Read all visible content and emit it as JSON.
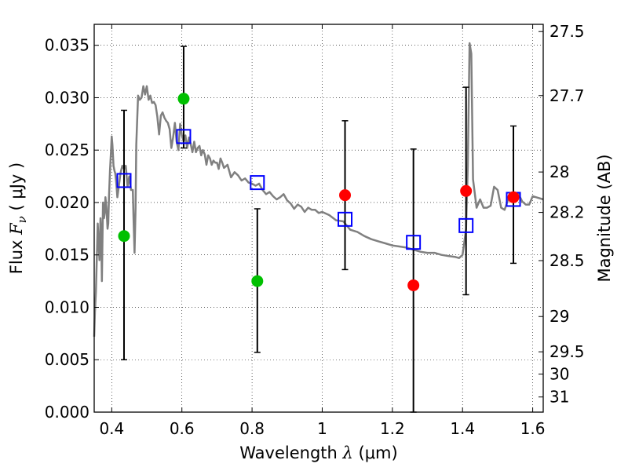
{
  "chart_data": {
    "type": "scatter",
    "xlabel": {
      "pre": "Wavelength  ",
      "sym": "λ",
      "post": " (μm)"
    },
    "ylabel": {
      "pre": "Flux  ",
      "sym": "F",
      "sub": "ν",
      "post": "  ( μJy )"
    },
    "y2label": "Magnitude (AB)",
    "xlim": [
      0.35,
      1.63
    ],
    "ylim": [
      0.0,
      0.037
    ],
    "grid": true,
    "x_ticks": [
      {
        "value": 0.4,
        "label": "0.4"
      },
      {
        "value": 0.6,
        "label": "0.6"
      },
      {
        "value": 0.8,
        "label": "0.8"
      },
      {
        "value": 1.0,
        "label": "1"
      },
      {
        "value": 1.2,
        "label": "1.2"
      },
      {
        "value": 1.4,
        "label": "1.4"
      },
      {
        "value": 1.6,
        "label": "1.6"
      }
    ],
    "y_ticks": [
      {
        "value": 0.0,
        "label": "0.000"
      },
      {
        "value": 0.005,
        "label": "0.005"
      },
      {
        "value": 0.01,
        "label": "0.010"
      },
      {
        "value": 0.015,
        "label": "0.015"
      },
      {
        "value": 0.02,
        "label": "0.020"
      },
      {
        "value": 0.025,
        "label": "0.025"
      },
      {
        "value": 0.03,
        "label": "0.030"
      },
      {
        "value": 0.035,
        "label": "0.035"
      }
    ],
    "y2_ticks": [
      {
        "mag": 27.5,
        "label": "27.5"
      },
      {
        "mag": 27.7,
        "label": "27.7"
      },
      {
        "mag": 28.0,
        "label": "28"
      },
      {
        "mag": 28.2,
        "label": "28.2"
      },
      {
        "mag": 28.5,
        "label": "28.5"
      },
      {
        "mag": 29.0,
        "label": "29"
      },
      {
        "mag": 29.5,
        "label": "29.5"
      },
      {
        "mag": 30.0,
        "label": "30"
      },
      {
        "mag": 31.0,
        "label": "31"
      }
    ],
    "series": [
      {
        "kind": "line",
        "color": "#808080",
        "x": [
          0.35,
          0.352,
          0.355,
          0.36,
          0.362,
          0.365,
          0.368,
          0.37,
          0.372,
          0.375,
          0.378,
          0.38,
          0.382,
          0.385,
          0.388,
          0.39,
          0.392,
          0.395,
          0.398,
          0.4,
          0.402,
          0.405,
          0.408,
          0.41,
          0.413,
          0.416,
          0.42,
          0.425,
          0.43,
          0.435,
          0.44,
          0.445,
          0.45,
          0.455,
          0.46,
          0.462,
          0.465,
          0.468,
          0.47,
          0.475,
          0.48,
          0.485,
          0.49,
          0.495,
          0.5,
          0.505,
          0.51,
          0.515,
          0.52,
          0.525,
          0.53,
          0.535,
          0.54,
          0.545,
          0.55,
          0.555,
          0.56,
          0.565,
          0.57,
          0.575,
          0.58,
          0.585,
          0.59,
          0.595,
          0.6,
          0.605,
          0.61,
          0.615,
          0.62,
          0.625,
          0.63,
          0.635,
          0.64,
          0.645,
          0.65,
          0.655,
          0.66,
          0.665,
          0.67,
          0.675,
          0.68,
          0.685,
          0.69,
          0.695,
          0.7,
          0.705,
          0.71,
          0.715,
          0.72,
          0.73,
          0.74,
          0.75,
          0.76,
          0.77,
          0.78,
          0.79,
          0.8,
          0.81,
          0.82,
          0.83,
          0.84,
          0.85,
          0.86,
          0.87,
          0.88,
          0.89,
          0.9,
          0.91,
          0.92,
          0.93,
          0.94,
          0.95,
          0.96,
          0.97,
          0.98,
          0.99,
          1.0,
          1.02,
          1.04,
          1.06,
          1.08,
          1.1,
          1.12,
          1.14,
          1.16,
          1.18,
          1.2,
          1.22,
          1.24,
          1.26,
          1.28,
          1.3,
          1.32,
          1.34,
          1.36,
          1.38,
          1.39,
          1.4,
          1.405,
          1.41,
          1.415,
          1.42,
          1.425,
          1.43,
          1.44,
          1.45,
          1.46,
          1.47,
          1.48,
          1.49,
          1.5,
          1.51,
          1.52,
          1.53,
          1.54,
          1.55,
          1.56,
          1.57,
          1.58,
          1.59,
          1.6,
          1.61,
          1.63
        ],
        "y": [
          0.0072,
          0.0095,
          0.0115,
          0.018,
          0.0165,
          0.0145,
          0.0185,
          0.017,
          0.0125,
          0.02,
          0.0185,
          0.019,
          0.0205,
          0.0195,
          0.0175,
          0.018,
          0.0205,
          0.023,
          0.025,
          0.0263,
          0.0255,
          0.0235,
          0.023,
          0.0228,
          0.0218,
          0.0205,
          0.0215,
          0.0228,
          0.0235,
          0.0232,
          0.0235,
          0.0215,
          0.0225,
          0.0212,
          0.0212,
          0.0185,
          0.0152,
          0.0195,
          0.0255,
          0.0302,
          0.0298,
          0.03,
          0.0311,
          0.0303,
          0.0311,
          0.0298,
          0.0302,
          0.0295,
          0.0296,
          0.0293,
          0.0282,
          0.0265,
          0.0283,
          0.0286,
          0.0281,
          0.0278,
          0.0276,
          0.027,
          0.0252,
          0.0262,
          0.0276,
          0.0258,
          0.025,
          0.0275,
          0.0264,
          0.0258,
          0.0264,
          0.0252,
          0.0262,
          0.0256,
          0.0248,
          0.0258,
          0.0248,
          0.0252,
          0.0254,
          0.0245,
          0.025,
          0.0246,
          0.0236,
          0.0245,
          0.0242,
          0.0236,
          0.024,
          0.0238,
          0.0238,
          0.0232,
          0.0242,
          0.0238,
          0.0233,
          0.0236,
          0.0224,
          0.0229,
          0.0226,
          0.0221,
          0.0223,
          0.0219,
          0.0218,
          0.0216,
          0.0218,
          0.0212,
          0.0208,
          0.021,
          0.0206,
          0.0203,
          0.0205,
          0.0208,
          0.0202,
          0.0199,
          0.0194,
          0.0198,
          0.0196,
          0.0191,
          0.0195,
          0.0193,
          0.0193,
          0.019,
          0.0191,
          0.0188,
          0.0183,
          0.0182,
          0.0174,
          0.0172,
          0.0168,
          0.0165,
          0.0163,
          0.0161,
          0.0159,
          0.0158,
          0.0157,
          0.0155,
          0.0153,
          0.0152,
          0.0152,
          0.015,
          0.0149,
          0.0148,
          0.0147,
          0.015,
          0.0162,
          0.0175,
          0.0235,
          0.0352,
          0.0342,
          0.0222,
          0.0195,
          0.0203,
          0.0195,
          0.0195,
          0.0197,
          0.0215,
          0.0212,
          0.0195,
          0.0193,
          0.0203,
          0.0208,
          0.0205,
          0.0208,
          0.0201,
          0.0198,
          0.0198,
          0.0206,
          0.0205,
          0.0203
        ]
      },
      {
        "kind": "scatter-square",
        "color": "#0000ff",
        "x": [
          0.435,
          0.605,
          0.815,
          1.065,
          1.26,
          1.41,
          1.545
        ],
        "y": [
          0.0221,
          0.0263,
          0.0219,
          0.0184,
          0.0162,
          0.0178,
          0.0203
        ]
      },
      {
        "kind": "scatter-circle",
        "color": "#00c000",
        "x": [
          0.435,
          0.605,
          0.815
        ],
        "y": [
          0.0168,
          0.0299,
          0.0125
        ]
      },
      {
        "kind": "scatter-circle",
        "color": "#ff0000",
        "x": [
          1.065,
          1.26,
          1.41,
          1.545
        ],
        "y": [
          0.0207,
          0.0121,
          0.0211,
          0.0205
        ]
      }
    ],
    "error_bars": {
      "color": "#000000",
      "x": [
        0.435,
        0.605,
        0.815,
        1.065,
        1.26,
        1.41,
        1.545
      ],
      "low": [
        0.005,
        0.0252,
        0.0057,
        0.0136,
        0.0,
        0.0112,
        0.0142
      ],
      "high": [
        0.0288,
        0.0349,
        0.0194,
        0.0278,
        0.0251,
        0.031,
        0.0273
      ]
    }
  }
}
